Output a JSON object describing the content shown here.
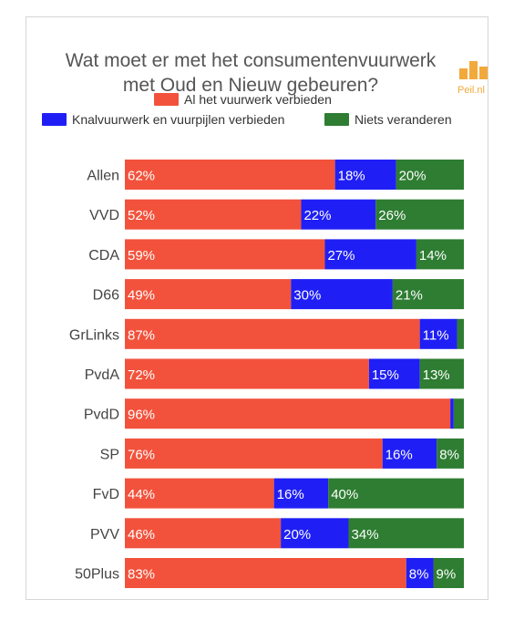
{
  "chart_data": {
    "type": "bar",
    "orientation": "horizontal",
    "stacked": true,
    "title_lines": [
      "Wat moet er met het consumentenvuurwerk",
      "met Oud en Nieuw gebeuren?"
    ],
    "logo_text": "Peil.nl",
    "legend_placement": "top",
    "categories": [
      "Allen",
      "VVD",
      "CDA",
      "D66",
      "GrLinks",
      "PvdA",
      "PvdD",
      "SP",
      "FvD",
      "PVV",
      "50Plus"
    ],
    "series": [
      {
        "name": "Al het vuurwerk verbieden",
        "color": "#f2523b",
        "values": [
          62,
          52,
          59,
          49,
          87,
          72,
          96,
          76,
          44,
          46,
          83
        ]
      },
      {
        "name": "Knalvuurwerk en vuurpijlen verbieden",
        "color": "#1f1ff5",
        "values": [
          18,
          22,
          27,
          30,
          11,
          15,
          1,
          16,
          16,
          20,
          8
        ]
      },
      {
        "name": "Niets veranderen",
        "color": "#2e7d32",
        "values": [
          20,
          26,
          14,
          21,
          2,
          13,
          3,
          8,
          40,
          34,
          9
        ]
      }
    ],
    "data_labels": [
      [
        "62%",
        "18%",
        "20%"
      ],
      [
        "52%",
        "22%",
        "26%"
      ],
      [
        "59%",
        "27%",
        "14%"
      ],
      [
        "49%",
        "30%",
        "21%"
      ],
      [
        "87%",
        "11%",
        ""
      ],
      [
        "72%",
        "15%",
        "13%"
      ],
      [
        "96%",
        "",
        ""
      ],
      [
        "76%",
        "16%",
        "8%"
      ],
      [
        "44%",
        "16%",
        "40%"
      ],
      [
        "46%",
        "20%",
        "34%"
      ],
      [
        "83%",
        "8%",
        "9%"
      ]
    ],
    "xlim": [
      0,
      100
    ],
    "grid": false
  }
}
